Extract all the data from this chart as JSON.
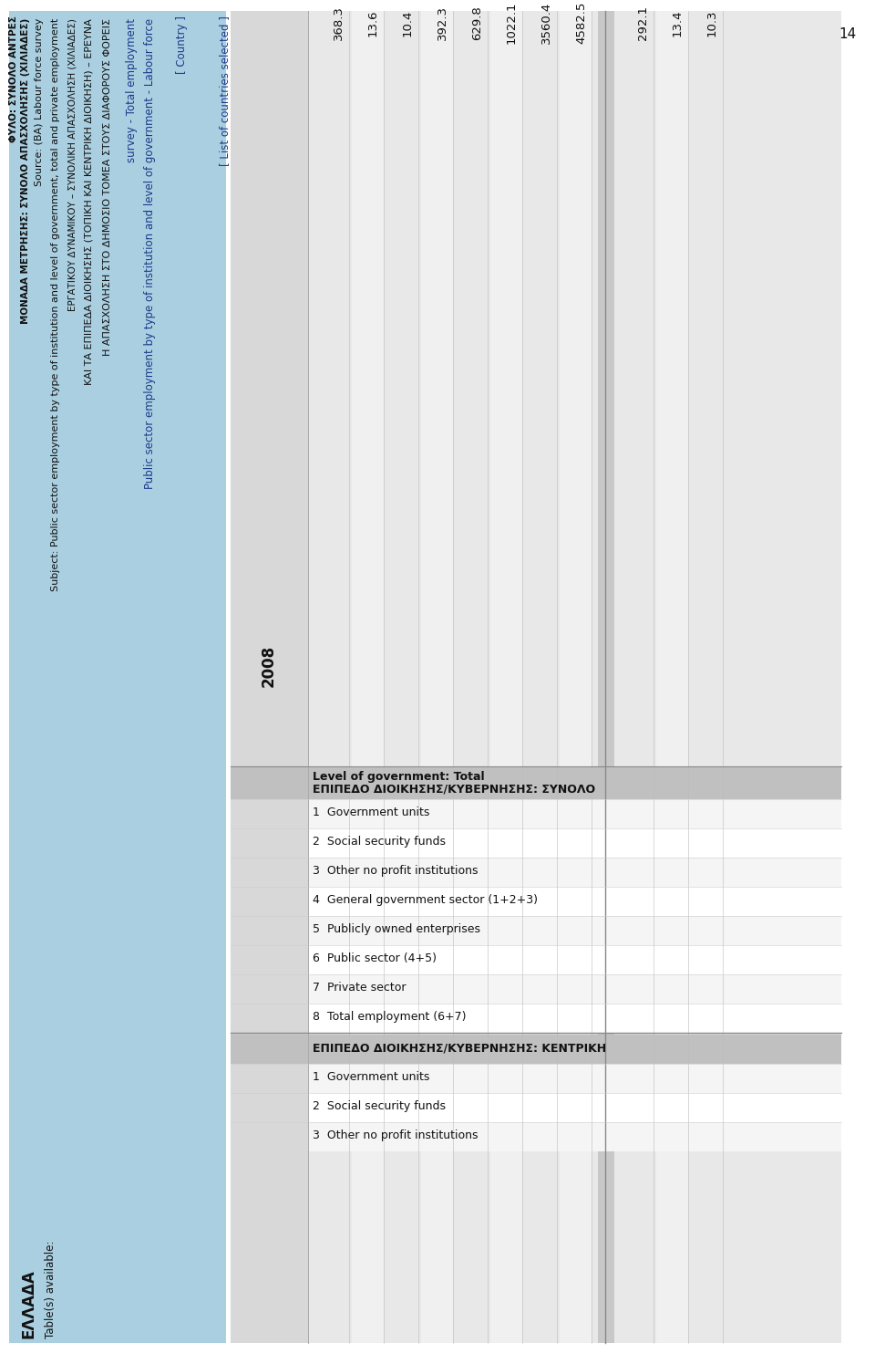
{
  "page_bg": "#ffffff",
  "light_blue_bg": "#aacfe0",
  "table_gray_bg": "#e8e8e8",
  "data_col_bg": "#d0d0d0",
  "header_bg": "#c0c0c0",
  "separator_bg": "#b0b0b0",
  "country_name": "ΕΛΛΑΔΑ",
  "tables_available": "Table(s) available:",
  "link_line1": "Public sector employment by type of institution and level of government - Labour force",
  "link_line2": "survey - Total employment",
  "greek_line1": "Η ΑΠΑΣΧΟΛΗΣΗ ΣΤΟ ΔΗΜΟΣΙΟ ΤΟΜΕΑ ΣΤΟΥΣ ΔΙΑΦΟΡΟΥΣ ΦΟΡΕΙΣ",
  "greek_line2": "ΚΑΙ ΤΑ ΕΠΙΠΕΔΑ ΔΙΟΙΚΗΣΗΣ (ΤΟΠΙΚΗ ΚΑΙ ΚΕΝΤΡΙΚΗ ΔΙΟΙΚΗΣΗ) – ΕΡΕΥΝΑ",
  "greek_line3": "ΕΡΓΑΤΙΚΟΥ ΔΥΝΑΜΙΚΟΥ – ΣΥΝΟΛΙΚΗ ΑΠΑΣΧΟΛΗΣΗ (ΧΙΛΙΑΔΕΣ)",
  "subject_label": "Subject:",
  "subject_text": "Public sector employment by type of institution and level of government, total and private employment",
  "source_label": "Source:",
  "source_text": "(BA) Labour force survey",
  "monada_label": "ΜΟΝΑΔΑ ΜΕΤΡΗΣΗΣ:",
  "monada_text": "ΣΥΝΟΛΟ ΑΠΑΣΧΟΛΗΣΗΣ (ΧΙΛΙΑΔΕΣ)",
  "fylo_label": "ΦΥΛΟ:",
  "fylo_text": "ΣΥΝΟΛΟ ΑΝΤΡΕΣ",
  "list_countries": "[ List of countries selected ]",
  "country_placeholder": "[ Country ]",
  "year_col": "2008",
  "page_number": "14",
  "header_total_en": "Level of government: Total",
  "header_total_gr": "ΕΠΙΠΕΔΟ ΔΙΟΙΚΗΣΗΣ/ΚΥΒΕΡΝΗΣΗΣ: ΣΥΝΟΛΟ",
  "header_kentiki_gr": "ΕΠΙΠΕΔΟ ΔΙΟΙΚΗΣΗΣ/ΚΥΒΕΡΝΗΣΗΣ: ΚΕΝΤΡΙΚΗ",
  "rows_total": [
    {
      "num": "1",
      "label": "Government units",
      "value": "368.3"
    },
    {
      "num": "2",
      "label": "Social security funds",
      "value": "13.6"
    },
    {
      "num": "3",
      "label": "Other no profit institutions",
      "value": "10.4"
    },
    {
      "num": "4",
      "label": "General government sector (1+2+3)",
      "value": "392.3"
    },
    {
      "num": "5",
      "label": "Publicly owned enterprises",
      "value": "629.8"
    },
    {
      "num": "6",
      "label": "Public sector (4+5)",
      "value": "1022.1"
    },
    {
      "num": "7",
      "label": "Private sector",
      "value": "3560.4"
    },
    {
      "num": "8",
      "label": "Total employment (6+7)",
      "value": "4582.5"
    }
  ],
  "rows_kentiki": [
    {
      "num": "1",
      "label": "Government units",
      "value": "292.1"
    },
    {
      "num": "2",
      "label": "Social security funds",
      "value": "13.4"
    },
    {
      "num": "3",
      "label": "Other no profit institutions",
      "value": "10.3"
    }
  ]
}
